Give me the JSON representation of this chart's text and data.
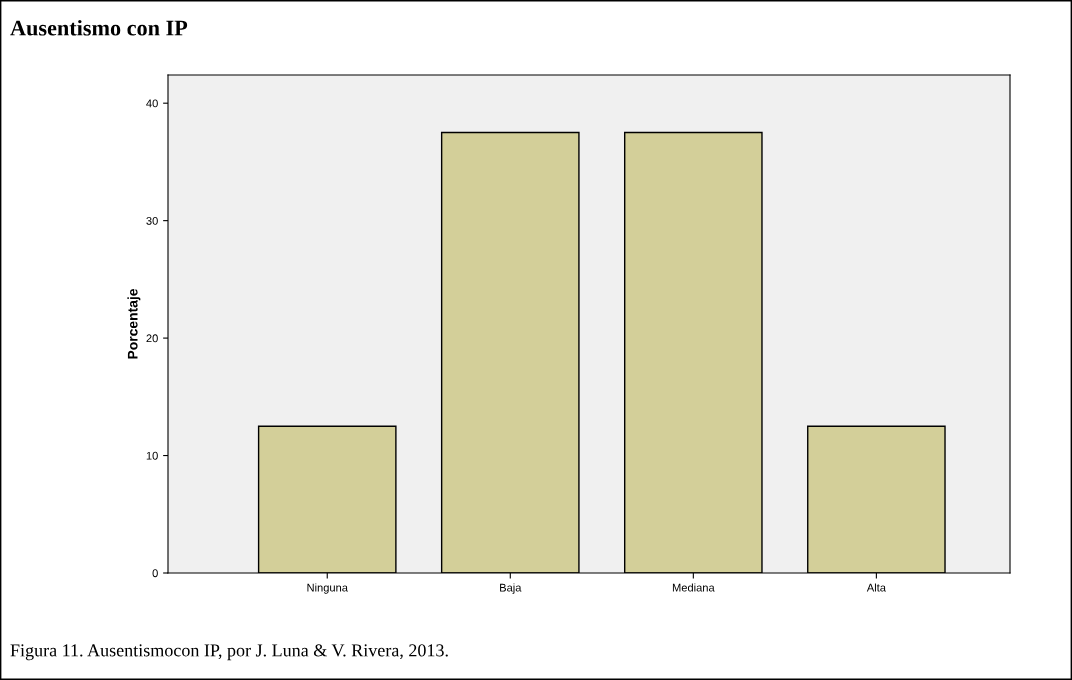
{
  "chart_data": {
    "type": "bar",
    "title": "Ausentismo con IP",
    "ylabel": "Porcentaje",
    "categories": [
      "Ninguna",
      "Baja",
      "Mediana",
      "Alta"
    ],
    "values": [
      12.5,
      37.5,
      37.5,
      12.5
    ],
    "color": "#d3cf99",
    "ylim": [
      0,
      42.4
    ],
    "yticks": [
      0,
      10,
      20,
      30,
      40
    ],
    "grid": false,
    "annotations": [
      "Figura 11. Ausentismocon IP, por J. Luna & V. Rivera, 2013."
    ]
  }
}
